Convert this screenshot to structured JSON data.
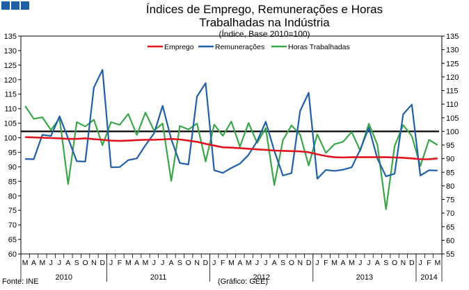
{
  "header_colors": [
    "#1f5fa8",
    "#1f5fa8",
    "#1f5fa8"
  ],
  "chart_data": {
    "type": "line",
    "title": "Índices de Emprego, Remunerações e Horas Trabalhadas na Indústria",
    "subtitle": "(Índice, Base 2010=100)",
    "ylim": [
      60,
      135
    ],
    "yticks": [
      60,
      65,
      70,
      75,
      80,
      85,
      90,
      95,
      100,
      105,
      110,
      115,
      120,
      125,
      130,
      135
    ],
    "y2lim": [
      55,
      135
    ],
    "y2ticks": [
      55,
      60,
      65,
      70,
      75,
      80,
      85,
      90,
      95,
      100,
      105,
      110,
      115,
      120,
      125,
      130,
      135
    ],
    "months": [
      "M",
      "A",
      "M",
      "J",
      "J",
      "A",
      "S",
      "O",
      "N",
      "D",
      "J",
      "F",
      "M",
      "A",
      "M",
      "J",
      "J",
      "A",
      "S",
      "O",
      "N",
      "D",
      "J",
      "F",
      "M",
      "A",
      "M",
      "J",
      "J",
      "A",
      "S",
      "O",
      "N",
      "D",
      "J",
      "F",
      "M",
      "A",
      "M",
      "J",
      "J",
      "A",
      "S",
      "O",
      "N",
      "D",
      "J",
      "F",
      "M"
    ],
    "years": [
      {
        "label": "2010",
        "start": 0,
        "end": 10
      },
      {
        "label": "2011",
        "start": 10,
        "end": 22
      },
      {
        "label": "2012",
        "start": 22,
        "end": 34
      },
      {
        "label": "2013",
        "start": 34,
        "end": 46
      },
      {
        "label": "2014",
        "start": 46,
        "end": 49
      }
    ],
    "reference_line": {
      "value": 100,
      "axis": "right",
      "color": "#000000"
    },
    "series": [
      {
        "name": "Emprego",
        "axis": "left",
        "color": "#e0141e",
        "values": [
          100.2,
          100.1,
          100.0,
          99.9,
          99.8,
          99.6,
          99.6,
          99.8,
          99.5,
          99.3,
          99.0,
          98.9,
          99.0,
          99.2,
          99.3,
          99.3,
          99.4,
          99.6,
          99.4,
          99.0,
          98.6,
          97.9,
          97.3,
          96.7,
          96.6,
          96.4,
          96.2,
          96.0,
          95.8,
          95.6,
          95.5,
          95.4,
          95.3,
          95.0,
          94.3,
          93.7,
          93.3,
          93.2,
          93.3,
          93.3,
          93.3,
          93.3,
          93.3,
          93.2,
          93.1,
          92.9,
          92.6,
          92.6,
          92.9
        ]
      },
      {
        "name": "Remunerações",
        "axis": "left",
        "color": "#1f5fa8",
        "values": [
          92.7,
          92.6,
          101.0,
          100.6,
          107.4,
          99.8,
          91.9,
          91.8,
          117.3,
          123.4,
          89.8,
          89.9,
          92.3,
          92.9,
          97.4,
          101.5,
          111.0,
          99.5,
          91.3,
          90.8,
          114.2,
          118.8,
          88.8,
          87.9,
          89.6,
          91.1,
          94.1,
          98.8,
          105.5,
          95.5,
          87.0,
          87.8,
          109.2,
          115.5,
          85.9,
          88.9,
          88.6,
          89.0,
          89.8,
          95.9,
          103.5,
          92.8,
          86.7,
          87.6,
          108.1,
          111.4,
          87.0,
          88.8,
          88.7
        ]
      },
      {
        "name": "Horas Trabalhadas",
        "axis": "right",
        "color": "#3aa64a",
        "values": [
          109.3,
          104.6,
          105.2,
          100.5,
          104.8,
          80.6,
          103.4,
          101.8,
          104.3,
          94.9,
          103.4,
          102.4,
          106.4,
          98.7,
          106.9,
          100.3,
          102.9,
          81.8,
          102.0,
          100.7,
          102.9,
          88.9,
          102.5,
          98.4,
          103.6,
          94.4,
          103.1,
          95.8,
          101.2,
          80.3,
          96.8,
          102.2,
          98.8,
          87.5,
          98.9,
          92.1,
          95.3,
          96.2,
          99.8,
          92.9,
          102.8,
          95.1,
          71.4,
          94.6,
          102.3,
          98.3,
          87.3,
          96.9,
          95.0
        ]
      }
    ]
  },
  "footer": {
    "source": "Fonte: INE",
    "credit": "(Gráfico: GEE)"
  }
}
